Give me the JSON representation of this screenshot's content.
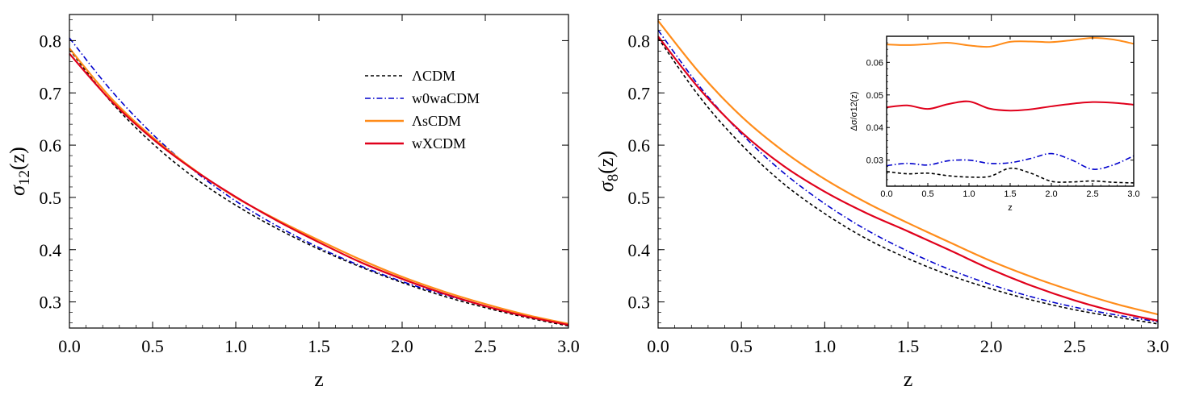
{
  "chart_data": [
    {
      "type": "line",
      "title": "",
      "xlabel": "z",
      "ylabel": "σ",
      "ylabel_sub": "12",
      "ylabel_suffix": "(z)",
      "xlim": [
        0,
        3
      ],
      "ylim": [
        0.25,
        0.85
      ],
      "xticks": [
        0,
        0.5,
        1,
        1.5,
        2,
        2.5,
        3
      ],
      "xtick_labels": [
        "0.0",
        "0.5",
        "1.0",
        "1.5",
        "2.0",
        "2.5",
        "3.0"
      ],
      "yticks": [
        0.3,
        0.4,
        0.5,
        0.6,
        0.7,
        0.8
      ],
      "ytick_labels": [
        "0.3",
        "0.4",
        "0.5",
        "0.6",
        "0.7",
        "0.8"
      ],
      "grid": false,
      "legend": {
        "position": "top-right",
        "entries": [
          {
            "label": "ΛCDM",
            "series": "LCDM"
          },
          {
            "label": "w0waCDM",
            "series": "w0waCDM"
          },
          {
            "label": "ΛsCDM",
            "series": "LsCDM"
          },
          {
            "label": "wXCDM",
            "series": "wXCDM"
          }
        ]
      },
      "x": [
        0,
        0.25,
        0.5,
        0.75,
        1.0,
        1.25,
        1.5,
        1.75,
        2.0,
        2.25,
        2.5,
        2.75,
        3.0
      ],
      "series": [
        {
          "name": "LCDM",
          "label": "ΛCDM",
          "color": "#000000",
          "style": "dashed",
          "values": [
            0.783,
            0.683,
            0.603,
            0.538,
            0.485,
            0.44,
            0.401,
            0.367,
            0.337,
            0.311,
            0.289,
            0.27,
            0.254
          ]
        },
        {
          "name": "w0waCDM",
          "label": "w0waCDM",
          "color": "#0000cc",
          "style": "dashdot",
          "values": [
            0.805,
            0.705,
            0.621,
            0.551,
            0.493,
            0.445,
            0.404,
            0.369,
            0.339,
            0.314,
            0.292,
            0.273,
            0.257
          ]
        },
        {
          "name": "LsCDM",
          "label": "ΛsCDM",
          "color": "#ff8c1a",
          "style": "solid",
          "values": [
            0.785,
            0.69,
            0.615,
            0.553,
            0.5,
            0.457,
            0.418,
            0.381,
            0.348,
            0.32,
            0.296,
            0.275,
            0.258
          ]
        },
        {
          "name": "wXCDM",
          "label": "wXCDM",
          "color": "#e0001b",
          "style": "solid",
          "values": [
            0.775,
            0.685,
            0.612,
            0.552,
            0.501,
            0.455,
            0.414,
            0.376,
            0.344,
            0.316,
            0.292,
            0.272,
            0.256
          ]
        }
      ]
    },
    {
      "type": "line",
      "title": "",
      "xlabel": "z",
      "ylabel": "σ",
      "ylabel_sub": "8",
      "ylabel_suffix": "(z)",
      "xlim": [
        0,
        3
      ],
      "ylim": [
        0.25,
        0.85
      ],
      "xticks": [
        0,
        0.5,
        1,
        1.5,
        2,
        2.5,
        3
      ],
      "xtick_labels": [
        "0.0",
        "0.5",
        "1.0",
        "1.5",
        "2.0",
        "2.5",
        "3.0"
      ],
      "yticks": [
        0.3,
        0.4,
        0.5,
        0.6,
        0.7,
        0.8
      ],
      "ytick_labels": [
        "0.3",
        "0.4",
        "0.5",
        "0.6",
        "0.7",
        "0.8"
      ],
      "grid": false,
      "x": [
        0,
        0.25,
        0.5,
        0.75,
        1.0,
        1.25,
        1.5,
        1.75,
        2.0,
        2.25,
        2.5,
        2.75,
        3.0
      ],
      "series": [
        {
          "name": "LCDM",
          "color": "#000000",
          "style": "dashed",
          "values": [
            0.805,
            0.692,
            0.601,
            0.527,
            0.469,
            0.421,
            0.383,
            0.351,
            0.325,
            0.303,
            0.285,
            0.271,
            0.258
          ]
        },
        {
          "name": "w0waCDM",
          "color": "#0000cc",
          "style": "dashdot",
          "values": [
            0.82,
            0.712,
            0.622,
            0.548,
            0.488,
            0.438,
            0.397,
            0.362,
            0.333,
            0.309,
            0.29,
            0.275,
            0.262
          ]
        },
        {
          "name": "LsCDM",
          "color": "#ff8c1a",
          "style": "solid",
          "values": [
            0.838,
            0.738,
            0.655,
            0.589,
            0.535,
            0.49,
            0.451,
            0.414,
            0.378,
            0.347,
            0.32,
            0.296,
            0.276
          ]
        },
        {
          "name": "wXCDM",
          "color": "#e0001b",
          "style": "solid",
          "values": [
            0.808,
            0.707,
            0.625,
            0.561,
            0.511,
            0.47,
            0.435,
            0.399,
            0.362,
            0.33,
            0.303,
            0.281,
            0.264
          ]
        }
      ]
    },
    {
      "type": "line",
      "title": "",
      "role": "inset",
      "xlabel": "z",
      "ylabel": "Δσ/σ12(z)",
      "xlim": [
        0,
        3
      ],
      "ylim": [
        0.022,
        0.068
      ],
      "xticks": [
        0,
        0.5,
        1,
        1.5,
        2,
        2.5,
        3
      ],
      "xtick_labels": [
        "0.0",
        "0.5",
        "1.0",
        "1.5",
        "2.0",
        "2.5",
        "3.0"
      ],
      "yticks": [
        0.03,
        0.04,
        0.05,
        0.06
      ],
      "ytick_labels": [
        "0.03",
        "0.04",
        "0.05",
        "0.06"
      ],
      "grid": false,
      "x": [
        0,
        0.25,
        0.5,
        0.75,
        1.0,
        1.25,
        1.5,
        1.75,
        2.0,
        2.25,
        2.5,
        2.75,
        3.0
      ],
      "series": [
        {
          "name": "LCDM",
          "color": "#000000",
          "style": "dashed",
          "values": [
            0.0265,
            0.0258,
            0.026,
            0.0252,
            0.0248,
            0.025,
            0.0275,
            0.026,
            0.0235,
            0.0233,
            0.0236,
            0.0232,
            0.023
          ]
        },
        {
          "name": "w0waCDM",
          "color": "#0000cc",
          "style": "dashdot",
          "values": [
            0.0283,
            0.029,
            0.0285,
            0.0298,
            0.03,
            0.029,
            0.0292,
            0.0305,
            0.032,
            0.03,
            0.0272,
            0.0285,
            0.0313
          ]
        },
        {
          "name": "LsCDM",
          "color": "#ff8c1a",
          "style": "solid",
          "values": [
            0.0655,
            0.0653,
            0.0656,
            0.066,
            0.0652,
            0.0648,
            0.0663,
            0.0664,
            0.0662,
            0.0668,
            0.0675,
            0.067,
            0.0657
          ]
        },
        {
          "name": "wXCDM",
          "color": "#e0001b",
          "style": "solid",
          "values": [
            0.0462,
            0.0468,
            0.0457,
            0.0472,
            0.048,
            0.0458,
            0.0452,
            0.0456,
            0.0465,
            0.0473,
            0.0478,
            0.0476,
            0.047
          ]
        }
      ]
    }
  ]
}
